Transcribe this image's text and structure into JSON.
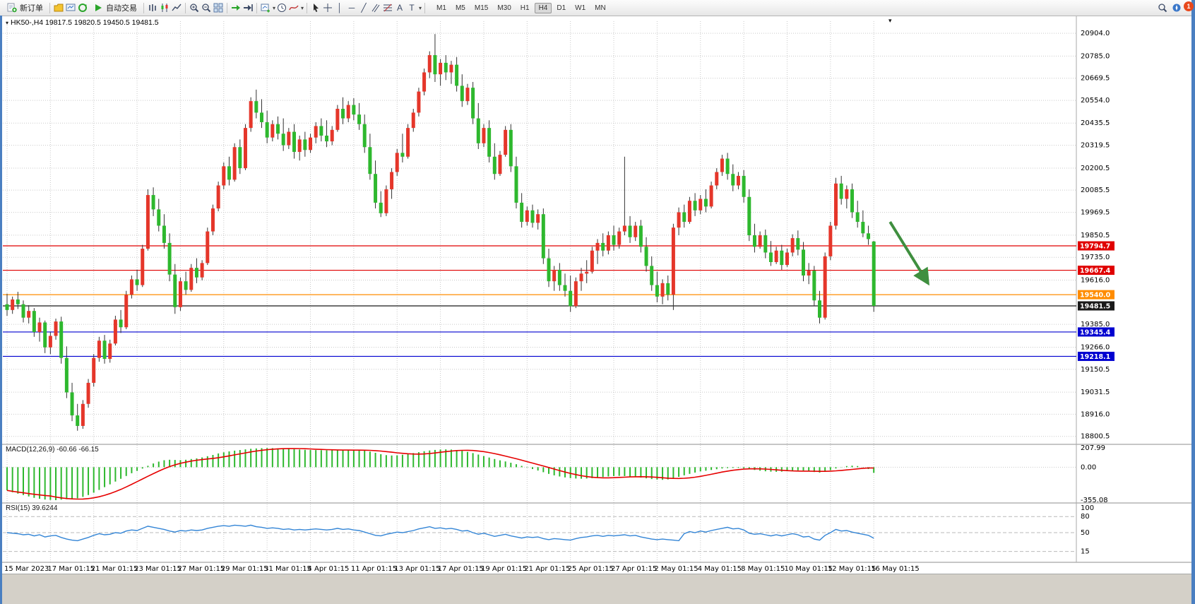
{
  "window": {
    "notification_count": "1"
  },
  "toolbar": {
    "new_order_label": "新订单",
    "autotrading_label": "自动交易",
    "tool_text_a": "A",
    "tool_text_t": "T",
    "timeframes": [
      "M1",
      "M5",
      "M15",
      "M30",
      "H1",
      "H4",
      "D1",
      "W1",
      "MN"
    ],
    "active_timeframe": "H4"
  },
  "chart_data": {
    "type": "candlestick",
    "symbol": "HK50-",
    "timeframe": "H4",
    "title": "HK50-,H4  19817.5 19820.5 19450.5 19481.5",
    "ohlc_current": {
      "open": 19817.5,
      "high": 19820.5,
      "low": 19450.5,
      "close": 19481.5
    },
    "up_color": "#e5362a",
    "down_color": "#2eb82e",
    "wick_color": "#333333",
    "y_range": [
      18770,
      20945
    ],
    "y_axis_labels": [
      "20904.0",
      "20785.0",
      "20669.5",
      "20554.0",
      "20435.5",
      "20319.5",
      "20200.5",
      "20085.5",
      "19969.5",
      "19850.5",
      "19735.0",
      "19616.0",
      "19385.0",
      "19266.0",
      "19150.5",
      "19031.5",
      "18916.0",
      "18800.5"
    ],
    "x_labels": [
      "15 Mar 2023",
      "17 Mar 01:15",
      "21 Mar 01:15",
      "23 Mar 01:15",
      "27 Mar 01:15",
      "29 Mar 01:15",
      "31 Mar 01:15",
      "4 Apr 01:15",
      "11 Apr 01:15",
      "13 Apr 01:15",
      "17 Apr 01:15",
      "19 Apr 01:15",
      "21 Apr 01:15",
      "25 Apr 01:15",
      "27 Apr 01:15",
      "2 May 01:15",
      "4 May 01:15",
      "8 May 01:15",
      "10 May 01:15",
      "12 May 01:15",
      "16 May 01:15"
    ],
    "levels": [
      {
        "value": 19794.7,
        "label": "19794.7",
        "color": "#e00000"
      },
      {
        "value": 19667.4,
        "label": "19667.4",
        "color": "#e00000"
      },
      {
        "value": 19540.0,
        "label": "19540.0",
        "color": "#ff8c00"
      },
      {
        "value": 19481.5,
        "label": "19481.5",
        "color": "#1a1a1a"
      },
      {
        "value": 19345.4,
        "label": "19345.4",
        "color": "#0000d0"
      },
      {
        "value": 19218.1,
        "label": "19218.1",
        "color": "#0000d0"
      }
    ],
    "arrow": {
      "from_index": 163,
      "from_price": 19920,
      "to_index": 170,
      "to_price": 19600,
      "color": "#3f8f3f"
    },
    "candles": [
      [
        19490,
        19545,
        19430,
        19460
      ],
      [
        19460,
        19530,
        19440,
        19515
      ],
      [
        19515,
        19555,
        19465,
        19490
      ],
      [
        19490,
        19510,
        19395,
        19420
      ],
      [
        19420,
        19485,
        19390,
        19455
      ],
      [
        19455,
        19470,
        19320,
        19345
      ],
      [
        19345,
        19420,
        19295,
        19395
      ],
      [
        19395,
        19405,
        19235,
        19265
      ],
      [
        19265,
        19345,
        19230,
        19325
      ],
      [
        19325,
        19415,
        19305,
        19400
      ],
      [
        19400,
        19425,
        19180,
        19210
      ],
      [
        19210,
        19270,
        19000,
        19030
      ],
      [
        19030,
        19080,
        18880,
        18910
      ],
      [
        18910,
        18970,
        18830,
        18855
      ],
      [
        18855,
        18990,
        18840,
        18970
      ],
      [
        18970,
        19100,
        18950,
        19080
      ],
      [
        19080,
        19230,
        19060,
        19210
      ],
      [
        19210,
        19320,
        19190,
        19300
      ],
      [
        19300,
        19330,
        19180,
        19205
      ],
      [
        19205,
        19305,
        19185,
        19285
      ],
      [
        19285,
        19430,
        19275,
        19410
      ],
      [
        19410,
        19460,
        19340,
        19370
      ],
      [
        19370,
        19560,
        19360,
        19540
      ],
      [
        19540,
        19640,
        19520,
        19620
      ],
      [
        19620,
        19670,
        19560,
        19590
      ],
      [
        19590,
        19800,
        19580,
        19780
      ],
      [
        19780,
        20090,
        19770,
        20060
      ],
      [
        20060,
        20100,
        19950,
        19985
      ],
      [
        19985,
        20040,
        19870,
        19900
      ],
      [
        19900,
        19960,
        19780,
        19810
      ],
      [
        19810,
        19860,
        19610,
        19645
      ],
      [
        19645,
        19700,
        19440,
        19475
      ],
      [
        19475,
        19630,
        19455,
        19610
      ],
      [
        19610,
        19660,
        19540,
        19565
      ],
      [
        19565,
        19700,
        19555,
        19680
      ],
      [
        19680,
        19730,
        19600,
        19630
      ],
      [
        19630,
        19720,
        19615,
        19705
      ],
      [
        19705,
        19890,
        19695,
        19870
      ],
      [
        19870,
        20010,
        19850,
        19990
      ],
      [
        19990,
        20130,
        19975,
        20110
      ],
      [
        20110,
        20230,
        20090,
        20210
      ],
      [
        20210,
        20260,
        20110,
        20140
      ],
      [
        20140,
        20330,
        20130,
        20310
      ],
      [
        20310,
        20350,
        20170,
        20200
      ],
      [
        20200,
        20430,
        20190,
        20410
      ],
      [
        20410,
        20570,
        20390,
        20550
      ],
      [
        20550,
        20610,
        20460,
        20490
      ],
      [
        20490,
        20560,
        20410,
        20440
      ],
      [
        20440,
        20500,
        20330,
        20360
      ],
      [
        20360,
        20450,
        20340,
        20430
      ],
      [
        20430,
        20470,
        20350,
        20380
      ],
      [
        20380,
        20460,
        20290,
        20320
      ],
      [
        20320,
        20410,
        20300,
        20390
      ],
      [
        20390,
        20430,
        20250,
        20285
      ],
      [
        20285,
        20370,
        20240,
        20350
      ],
      [
        20350,
        20390,
        20260,
        20295
      ],
      [
        20295,
        20380,
        20280,
        20360
      ],
      [
        20360,
        20440,
        20330,
        20420
      ],
      [
        20420,
        20460,
        20340,
        20370
      ],
      [
        20370,
        20450,
        20310,
        20340
      ],
      [
        20340,
        20420,
        20320,
        20400
      ],
      [
        20400,
        20530,
        20390,
        20510
      ],
      [
        20510,
        20570,
        20430,
        20460
      ],
      [
        20460,
        20550,
        20440,
        20530
      ],
      [
        20530,
        20565,
        20450,
        20480
      ],
      [
        20480,
        20540,
        20400,
        20430
      ],
      [
        20430,
        20480,
        20280,
        20310
      ],
      [
        20310,
        20380,
        20140,
        20170
      ],
      [
        20170,
        20240,
        19990,
        20020
      ],
      [
        20020,
        20080,
        19945,
        19965
      ],
      [
        19965,
        20110,
        19950,
        20090
      ],
      [
        20090,
        20200,
        20040,
        20180
      ],
      [
        20180,
        20300,
        20160,
        20280
      ],
      [
        20280,
        20380,
        20230,
        20260
      ],
      [
        20260,
        20430,
        20250,
        20410
      ],
      [
        20410,
        20510,
        20390,
        20490
      ],
      [
        20490,
        20620,
        20470,
        20600
      ],
      [
        20600,
        20720,
        20580,
        20700
      ],
      [
        20700,
        20810,
        20670,
        20790
      ],
      [
        20790,
        20900,
        20650,
        20690
      ],
      [
        20690,
        20770,
        20630,
        20750
      ],
      [
        20750,
        20790,
        20660,
        20700
      ],
      [
        20700,
        20760,
        20640,
        20740
      ],
      [
        20740,
        20780,
        20600,
        20630
      ],
      [
        20630,
        20690,
        20520,
        20550
      ],
      [
        20550,
        20640,
        20530,
        20620
      ],
      [
        20620,
        20650,
        20430,
        20460
      ],
      [
        20460,
        20540,
        20300,
        20330
      ],
      [
        20330,
        20430,
        20310,
        20410
      ],
      [
        20410,
        20450,
        20230,
        20260
      ],
      [
        20260,
        20330,
        20140,
        20170
      ],
      [
        20170,
        20290,
        20160,
        20270
      ],
      [
        20270,
        20420,
        20260,
        20400
      ],
      [
        20400,
        20430,
        20180,
        20210
      ],
      [
        20210,
        20260,
        19990,
        20020
      ],
      [
        20020,
        20070,
        19890,
        19920
      ],
      [
        19920,
        20000,
        19900,
        19980
      ],
      [
        19980,
        20010,
        19890,
        19915
      ],
      [
        19915,
        19985,
        19880,
        19960
      ],
      [
        19960,
        19990,
        19700,
        19730
      ],
      [
        19730,
        19780,
        19580,
        19610
      ],
      [
        19610,
        19690,
        19560,
        19670
      ],
      [
        19670,
        19705,
        19560,
        19590
      ],
      [
        19590,
        19650,
        19530,
        19560
      ],
      [
        19560,
        19640,
        19450,
        19480
      ],
      [
        19480,
        19630,
        19470,
        19610
      ],
      [
        19610,
        19680,
        19560,
        19650
      ],
      [
        19650,
        19720,
        19600,
        19660
      ],
      [
        19660,
        19790,
        19650,
        19770
      ],
      [
        19770,
        19830,
        19700,
        19810
      ],
      [
        19810,
        19860,
        19740,
        19770
      ],
      [
        19770,
        19870,
        19750,
        19850
      ],
      [
        19850,
        19900,
        19770,
        19800
      ],
      [
        19800,
        19890,
        19780,
        19870
      ],
      [
        19870,
        20260,
        19850,
        19900
      ],
      [
        19900,
        19950,
        19810,
        19840
      ],
      [
        19840,
        19920,
        19820,
        19900
      ],
      [
        19900,
        19930,
        19760,
        19790
      ],
      [
        19790,
        19840,
        19660,
        19690
      ],
      [
        19690,
        19740,
        19560,
        19590
      ],
      [
        19590,
        19660,
        19500,
        19530
      ],
      [
        19530,
        19620,
        19490,
        19600
      ],
      [
        19600,
        19640,
        19510,
        19540
      ],
      [
        19540,
        19910,
        19460,
        19890
      ],
      [
        19890,
        19995,
        19850,
        19970
      ],
      [
        19970,
        20010,
        19890,
        19920
      ],
      [
        19920,
        20050,
        19910,
        20030
      ],
      [
        20030,
        20070,
        19950,
        19980
      ],
      [
        19980,
        20060,
        19960,
        20040
      ],
      [
        20040,
        20090,
        19970,
        20000
      ],
      [
        20000,
        20130,
        19990,
        20110
      ],
      [
        20110,
        20200,
        20090,
        20180
      ],
      [
        20180,
        20270,
        20160,
        20250
      ],
      [
        20250,
        20280,
        20140,
        20170
      ],
      [
        20170,
        20220,
        20080,
        20110
      ],
      [
        20110,
        20180,
        20090,
        20160
      ],
      [
        20160,
        20190,
        20020,
        20050
      ],
      [
        20050,
        20090,
        19820,
        19850
      ],
      [
        19850,
        19910,
        19760,
        19790
      ],
      [
        19790,
        19870,
        19780,
        19850
      ],
      [
        19850,
        19880,
        19730,
        19760
      ],
      [
        19760,
        19820,
        19690,
        19710
      ],
      [
        19710,
        19790,
        19700,
        19770
      ],
      [
        19770,
        19800,
        19670,
        19695
      ],
      [
        19695,
        19780,
        19685,
        19760
      ],
      [
        19760,
        19855,
        19740,
        19835
      ],
      [
        19835,
        19875,
        19745,
        19775
      ],
      [
        19775,
        19815,
        19610,
        19640
      ],
      [
        19640,
        19705,
        19595,
        19665
      ],
      [
        19665,
        19690,
        19480,
        19510
      ],
      [
        19510,
        19560,
        19390,
        19420
      ],
      [
        19420,
        19760,
        19410,
        19740
      ],
      [
        19740,
        19920,
        19720,
        19900
      ],
      [
        19900,
        20150,
        19880,
        20120
      ],
      [
        20120,
        20160,
        20010,
        20040
      ],
      [
        20040,
        20110,
        19990,
        20090
      ],
      [
        20090,
        20120,
        19940,
        19970
      ],
      [
        19970,
        20030,
        19890,
        19920
      ],
      [
        19920,
        19980,
        19840,
        19860
      ],
      [
        19860,
        19900,
        19800,
        19830
      ],
      [
        19817.5,
        19820.5,
        19450.5,
        19481.5
      ]
    ],
    "macd": {
      "label": "MACD(12,26,9)",
      "value_main": "-60.66",
      "value_signal": "-66.15",
      "axis_labels": [
        "207.99",
        "0.00",
        "-355.08"
      ],
      "range": [
        -355.08,
        207.99
      ],
      "histogram_color": "#2eb82e",
      "signal_color": "#e60000",
      "histogram": [
        -250,
        -270,
        -285,
        -300,
        -315,
        -330,
        -340,
        -348,
        -352,
        -355,
        -350,
        -345,
        -340,
        -335,
        -320,
        -300,
        -275,
        -245,
        -215,
        -185,
        -155,
        -125,
        -95,
        -65,
        -40,
        -15,
        15,
        40,
        60,
        75,
        80,
        78,
        76,
        80,
        88,
        95,
        105,
        118,
        132,
        148,
        160,
        170,
        178,
        185,
        192,
        198,
        202,
        205,
        206,
        205,
        203,
        200,
        197,
        194,
        190,
        187,
        185,
        184,
        183,
        182,
        182,
        183,
        185,
        186,
        186,
        184,
        178,
        168,
        155,
        140,
        130,
        126,
        128,
        134,
        142,
        152,
        162,
        172,
        180,
        186,
        190,
        192,
        190,
        185,
        176,
        165,
        152,
        136,
        120,
        104,
        88,
        74,
        62,
        48,
        32,
        14,
        -4,
        -20,
        -36,
        -54,
        -72,
        -88,
        -100,
        -110,
        -118,
        -122,
        -124,
        -122,
        -118,
        -112,
        -106,
        -100,
        -96,
        -94,
        -96,
        -100,
        -106,
        -112,
        -120,
        -128,
        -134,
        -136,
        -132,
        -120,
        -104,
        -88,
        -72,
        -58,
        -46,
        -38,
        -30,
        -22,
        -14,
        -10,
        -8,
        -8,
        -12,
        -20,
        -30,
        -38,
        -44,
        -48,
        -50,
        -48,
        -44,
        -38,
        -34,
        -36,
        -42,
        -52,
        -58,
        -48,
        -32,
        -14,
        2,
        12,
        16,
        12,
        2,
        -20,
        -60.66
      ]
    },
    "rsi": {
      "label": "RSI(15)",
      "value": "39.6244",
      "axis_labels": [
        "100",
        "80",
        "50",
        "15"
      ],
      "levels": [
        80,
        50,
        15
      ],
      "range": [
        0,
        100
      ],
      "line_color": "#3385d6",
      "values": [
        50,
        49,
        48,
        46,
        47,
        44,
        46,
        42,
        44,
        45,
        41,
        38,
        36,
        35,
        38,
        41,
        45,
        48,
        46,
        47,
        50,
        49,
        53,
        55,
        54,
        58,
        62,
        60,
        58,
        56,
        53,
        51,
        54,
        53,
        55,
        54,
        55,
        58,
        60,
        62,
        63,
        62,
        64,
        63,
        62,
        64,
        61,
        60,
        58,
        59,
        58,
        56,
        57,
        55,
        56,
        55,
        56,
        57,
        56,
        55,
        56,
        58,
        56,
        57,
        55,
        54,
        51,
        48,
        45,
        44,
        47,
        49,
        51,
        50,
        52,
        54,
        57,
        59,
        61,
        58,
        59,
        57,
        58,
        56,
        53,
        54,
        50,
        47,
        49,
        46,
        43,
        45,
        47,
        44,
        42,
        40,
        42,
        41,
        42,
        39,
        37,
        39,
        38,
        37,
        36,
        39,
        41,
        42,
        44,
        45,
        43,
        45,
        44,
        45,
        46,
        44,
        45,
        42,
        40,
        38,
        37,
        38,
        37,
        36,
        35,
        48,
        52,
        50,
        53,
        51,
        54,
        56,
        58,
        60,
        57,
        58,
        55,
        49,
        47,
        48,
        46,
        44,
        46,
        44,
        46,
        48,
        46,
        42,
        43,
        38,
        36,
        45,
        50,
        56,
        53,
        54,
        51,
        49,
        47,
        45,
        39.62
      ]
    }
  }
}
